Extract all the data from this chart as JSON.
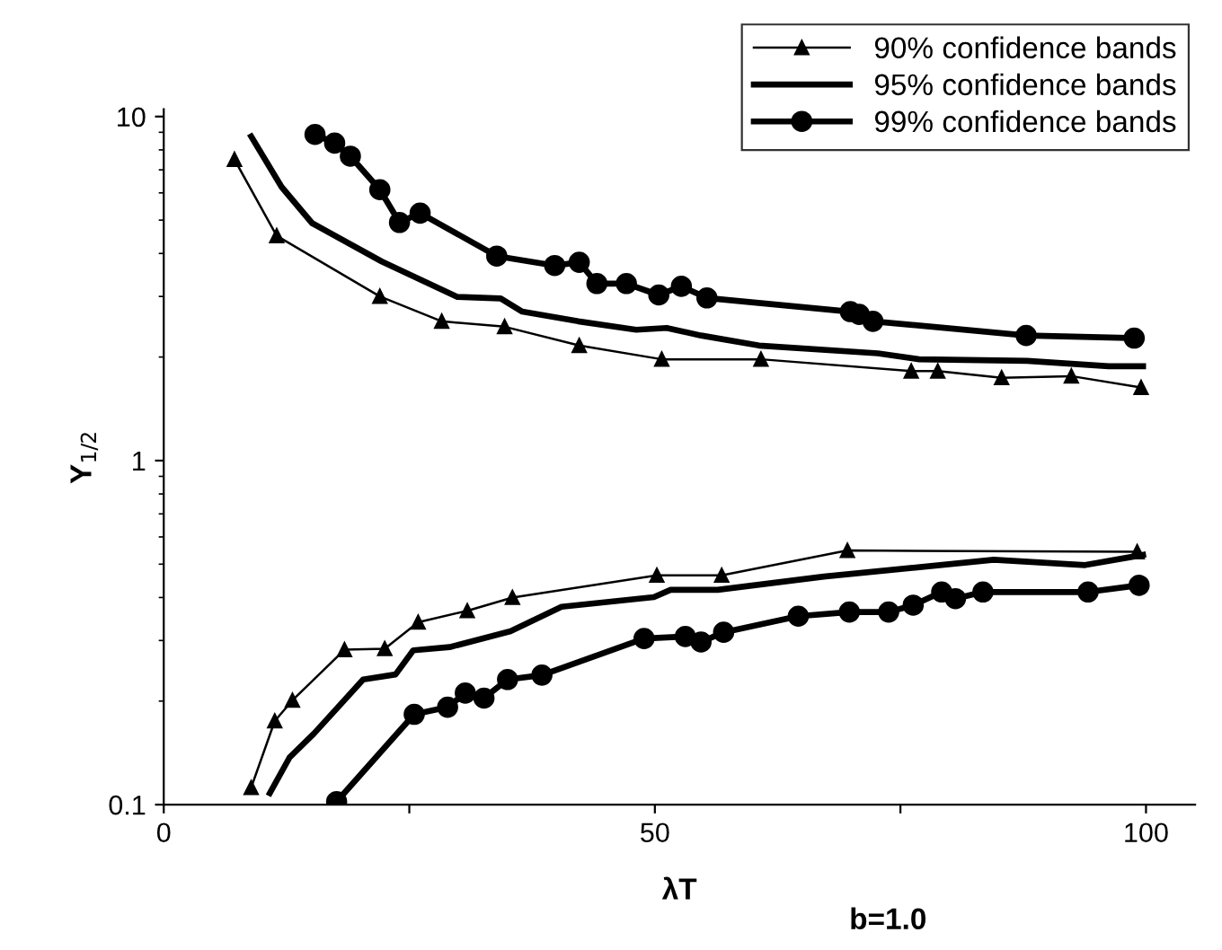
{
  "chart_data": {
    "type": "line",
    "xlabel": "λT",
    "ylabel": "Y$_{1/2}$",
    "annotations": [
      "b=1.0"
    ],
    "log": "y",
    "xlim": [
      0,
      105
    ],
    "xticks": [
      0,
      {
        "value": 25,
        "label": null
      },
      50,
      {
        "value": 75,
        "label": null
      },
      100
    ],
    "ylim": [
      0.1,
      10.5
    ],
    "yticks": [
      0.1,
      1,
      10
    ],
    "grid": false,
    "legend": "top right",
    "series": [
      {
        "name": "90% confidence bands",
        "color": "#000000",
        "marker": "triangle",
        "line_style": "solid",
        "x": [
          7.2,
          11.5,
          22.0,
          28.3,
          34.7,
          42.3,
          50.7,
          60.8,
          76.1,
          78.8,
          85.3,
          92.4,
          99.5
        ],
        "values": [
          7.5,
          4.5,
          3.0,
          2.54,
          2.45,
          2.16,
          1.97,
          1.97,
          1.82,
          1.82,
          1.74,
          1.76,
          1.63
        ]
      },
      {
        "color": "#000000",
        "marker": "triangle",
        "line_style": "solid",
        "x": [
          8.9,
          11.3,
          13.1,
          18.4,
          22.5,
          25.9,
          30.9,
          35.5,
          50.2,
          56.8,
          69.6,
          99.1
        ],
        "values": [
          0.112,
          0.175,
          0.201,
          0.282,
          0.284,
          0.339,
          0.366,
          0.4,
          0.464,
          0.464,
          0.548,
          0.543
        ]
      },
      {
        "name": "95% confidence bands",
        "color": "#000000",
        "marker": "none",
        "line_style": "solid",
        "x": [
          8.9,
          12.0,
          15.1,
          22.2,
          29.9,
          34.3,
          36.5,
          42.2,
          48.1,
          51.2,
          54.7,
          60.6,
          72.7,
          76.9,
          87.9,
          96.2,
          99.7
        ],
        "values": [
          8.75,
          6.24,
          4.9,
          3.79,
          2.99,
          2.96,
          2.71,
          2.54,
          2.4,
          2.43,
          2.31,
          2.16,
          2.05,
          1.97,
          1.95,
          1.88,
          1.88
        ]
      },
      {
        "color": "#000000",
        "marker": "none",
        "line_style": "solid",
        "x": [
          10.8,
          12.8,
          15.3,
          20.3,
          23.6,
          25.4,
          29.1,
          35.3,
          40.5,
          49.9,
          51.6,
          56.4,
          67.2,
          84.5,
          93.8,
          99.7
        ],
        "values": [
          0.108,
          0.137,
          0.161,
          0.231,
          0.239,
          0.281,
          0.287,
          0.319,
          0.376,
          0.401,
          0.421,
          0.421,
          0.46,
          0.515,
          0.497,
          0.532
        ]
      },
      {
        "name": "99% confidence bands",
        "color": "#000000",
        "marker": "circle",
        "line_style": "solid",
        "x": [
          15.4,
          17.4,
          19.0,
          22.0,
          24.0,
          26.1,
          33.9,
          39.8,
          42.3,
          44.1,
          47.1,
          50.4,
          52.7,
          55.3,
          69.9,
          70.8,
          72.2,
          87.8,
          98.8
        ],
        "values": [
          8.87,
          8.37,
          7.67,
          6.13,
          4.92,
          5.24,
          3.93,
          3.69,
          3.77,
          3.27,
          3.27,
          3.03,
          3.21,
          2.97,
          2.71,
          2.66,
          2.54,
          2.31,
          2.27
        ]
      },
      {
        "color": "#000000",
        "marker": "circle",
        "line_style": "solid",
        "x": [
          17.6,
          25.5,
          28.9,
          30.7,
          32.6,
          35.0,
          38.5,
          48.9,
          53.1,
          54.7,
          57.0,
          64.6,
          69.8,
          73.8,
          76.3,
          79.2,
          80.6,
          83.4,
          94.1,
          99.3
        ],
        "values": [
          0.102,
          0.183,
          0.192,
          0.211,
          0.204,
          0.231,
          0.238,
          0.304,
          0.308,
          0.297,
          0.317,
          0.353,
          0.363,
          0.363,
          0.38,
          0.415,
          0.397,
          0.415,
          0.415,
          0.434
        ]
      }
    ]
  }
}
